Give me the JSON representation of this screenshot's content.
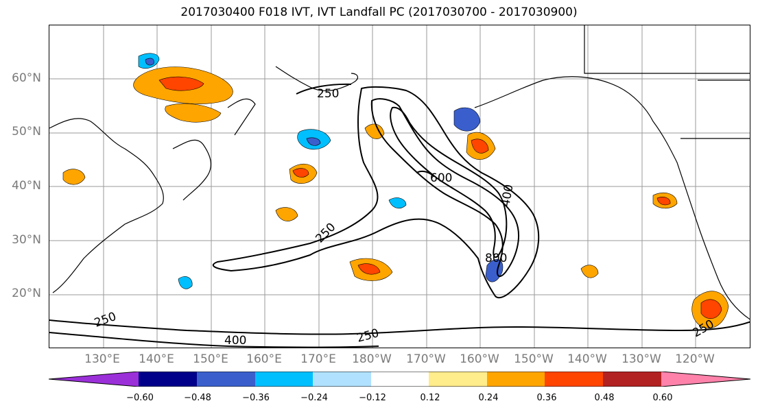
{
  "title": "2017030400 F018 IVT, IVT Landfall PC (2017030700 - 2017030900)",
  "lat_labels": [
    "60°N",
    "50°N",
    "40°N",
    "30°N",
    "20°N"
  ],
  "lon_labels": [
    "130°E",
    "140°E",
    "150°E",
    "160°E",
    "170°E",
    "180°W",
    "170°W",
    "160°W",
    "150°W",
    "140°W",
    "130°W",
    "120°W"
  ],
  "contour_labels": [
    "250",
    "600",
    "400",
    "250",
    "800",
    "250",
    "400",
    "250",
    "250"
  ],
  "colorbar": {
    "ticks": [
      "−0.60",
      "−0.48",
      "−0.36",
      "−0.24",
      "−0.12",
      "0.12",
      "0.24",
      "0.36",
      "0.48",
      "0.60"
    ],
    "colors": [
      "#9b30d9",
      "#00008b",
      "#3a5fcd",
      "#00bfff",
      "#b0e2ff",
      "#ffffff",
      "#ffec8b",
      "#ffa500",
      "#ff4500",
      "#b22222",
      "#ff82ab"
    ]
  }
}
